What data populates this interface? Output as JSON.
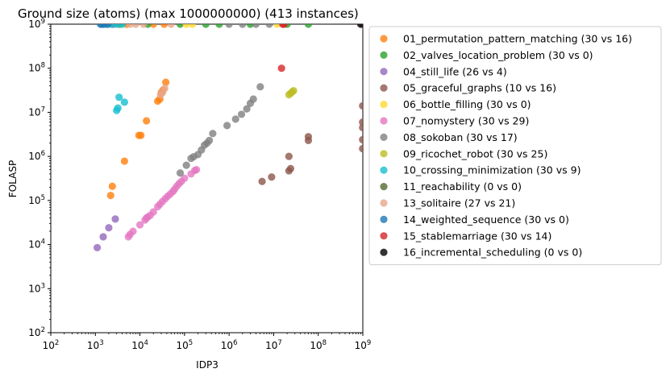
{
  "chart_data": {
    "type": "scatter",
    "title": "Ground size (atoms) (max 1000000000) (413 instances)",
    "xlabel": "IDP3",
    "ylabel": "FOLASP",
    "xscale": "log",
    "yscale": "log",
    "xlim": [
      100,
      1000000000
    ],
    "ylim": [
      100,
      1000000000
    ],
    "x_ticks": [
      {
        "base": "10",
        "exp": "2"
      },
      {
        "base": "10",
        "exp": "3"
      },
      {
        "base": "10",
        "exp": "4"
      },
      {
        "base": "10",
        "exp": "5"
      },
      {
        "base": "10",
        "exp": "6"
      },
      {
        "base": "10",
        "exp": "7"
      },
      {
        "base": "10",
        "exp": "8"
      },
      {
        "base": "10",
        "exp": "9"
      }
    ],
    "y_ticks": [
      {
        "base": "10",
        "exp": "2"
      },
      {
        "base": "10",
        "exp": "3"
      },
      {
        "base": "10",
        "exp": "4"
      },
      {
        "base": "10",
        "exp": "5"
      },
      {
        "base": "10",
        "exp": "6"
      },
      {
        "base": "10",
        "exp": "7"
      },
      {
        "base": "10",
        "exp": "8"
      },
      {
        "base": "10",
        "exp": "9"
      }
    ],
    "legend_position": "outside-right",
    "series": [
      {
        "name": "01_permutation_pattern_matching (30 vs 16)",
        "color": "#ff7f0e",
        "points": [
          [
            2200,
            130000
          ],
          [
            2400,
            210000
          ],
          [
            4500,
            780000
          ],
          [
            9500,
            3000000
          ],
          [
            10500,
            3000000
          ],
          [
            14000,
            6400000
          ],
          [
            25000,
            18000000
          ],
          [
            28000,
            20000000
          ],
          [
            30000,
            28000000
          ],
          [
            33000,
            32000000
          ],
          [
            38000,
            48000000
          ],
          [
            2500,
            1000000000
          ],
          [
            5000,
            1000000000
          ],
          [
            20000,
            1000000000
          ],
          [
            35000,
            1000000000
          ]
        ]
      },
      {
        "name": "02_valves_location_problem (30 vs 0)",
        "color": "#2ca02c",
        "points": [
          [
            3500,
            1000000000
          ],
          [
            15000,
            1000000000
          ],
          [
            80000,
            1000000000
          ],
          [
            300000,
            1000000000
          ],
          [
            600000,
            1000000000
          ],
          [
            3000000,
            1000000000
          ],
          [
            20000000,
            1000000000
          ],
          [
            60000000,
            1000000000
          ]
        ]
      },
      {
        "name": "04_still_life (26 vs 4)",
        "color": "#9467bd",
        "points": [
          [
            1100,
            8500
          ],
          [
            1500,
            15000
          ],
          [
            2000,
            24000
          ],
          [
            2800,
            38000
          ],
          [
            1600,
            1000000000
          ],
          [
            2500,
            1000000000
          ]
        ]
      },
      {
        "name": "05_graceful_graphs (10 vs 16)",
        "color": "#8c564b",
        "points": [
          [
            5500000,
            270000
          ],
          [
            9000000,
            340000
          ],
          [
            22000000,
            470000
          ],
          [
            24000000,
            530000
          ],
          [
            60000000,
            2300000
          ],
          [
            60000000,
            2800000
          ],
          [
            22000000,
            1000000
          ],
          [
            990000000,
            14000000
          ],
          [
            990000000,
            6000000
          ],
          [
            990000000,
            4500000
          ],
          [
            990000000,
            2400000
          ],
          [
            990000000,
            1500000
          ],
          [
            990000000,
            1000000000
          ]
        ]
      },
      {
        "name": "06_bottle_filling (30 vs 0)",
        "color": "#ffd92f",
        "points": [
          [
            110000,
            1000000000
          ],
          [
            150000,
            1000000000
          ],
          [
            12000000,
            1000000000
          ]
        ]
      },
      {
        "name": "07_nomystery (30 vs 29)",
        "color": "#e377c2",
        "points": [
          [
            5500,
            15000
          ],
          [
            6000,
            17000
          ],
          [
            7000,
            20000
          ],
          [
            10000,
            28000
          ],
          [
            13000,
            36000
          ],
          [
            14000,
            40000
          ],
          [
            15000,
            42000
          ],
          [
            17000,
            46000
          ],
          [
            20000,
            55000
          ],
          [
            25000,
            72000
          ],
          [
            28000,
            82000
          ],
          [
            32000,
            95000
          ],
          [
            37000,
            110000
          ],
          [
            42000,
            125000
          ],
          [
            48000,
            140000
          ],
          [
            55000,
            160000
          ],
          [
            60000,
            180000
          ],
          [
            67000,
            210000
          ],
          [
            75000,
            240000
          ],
          [
            85000,
            270000
          ],
          [
            100000,
            320000
          ],
          [
            140000,
            400000
          ],
          [
            170000,
            480000
          ],
          [
            185000,
            500000
          ]
        ]
      },
      {
        "name": "08_sokoban (30 vs 17)",
        "color": "#7f7f7f",
        "points": [
          [
            80000,
            420000
          ],
          [
            110000,
            630000
          ],
          [
            140000,
            900000
          ],
          [
            160000,
            980000
          ],
          [
            200000,
            1100000
          ],
          [
            240000,
            1400000
          ],
          [
            280000,
            1800000
          ],
          [
            320000,
            2000000
          ],
          [
            360000,
            2300000
          ],
          [
            430000,
            3300000
          ],
          [
            900000,
            5000000
          ],
          [
            1400000,
            7000000
          ],
          [
            1900000,
            9000000
          ],
          [
            2500000,
            12000000
          ],
          [
            3000000,
            16000000
          ],
          [
            3500000,
            20000000
          ],
          [
            5000000,
            38000000
          ],
          [
            1000000,
            1000000000
          ],
          [
            2000000,
            1000000000
          ],
          [
            4000000,
            1000000000
          ],
          [
            8000000,
            1000000000
          ]
        ]
      },
      {
        "name": "09_ricochet_robot (30 vs 25)",
        "color": "#bcbd22",
        "points": [
          [
            22000000,
            25000000
          ],
          [
            24000000,
            27000000
          ],
          [
            26000000,
            29000000
          ],
          [
            28000000,
            31000000
          ]
        ]
      },
      {
        "name": "10_crossing_minimization (30 vs 9)",
        "color": "#17becf",
        "points": [
          [
            3000,
            11000000
          ],
          [
            3200,
            12500000
          ],
          [
            3400,
            22000000
          ],
          [
            4500,
            17000000
          ],
          [
            1400,
            1000000000
          ],
          [
            1800,
            1000000000
          ],
          [
            2300,
            1000000000
          ],
          [
            3000,
            1000000000
          ],
          [
            4000,
            1000000000
          ]
        ]
      },
      {
        "name": "11_reachability (0 vs 0)",
        "color": "#556b2f",
        "points": []
      },
      {
        "name": "13_solitaire (27 vs 21)",
        "color": "#e9a68b",
        "points": [
          [
            29000,
            25000000
          ],
          [
            32000,
            28000000
          ],
          [
            36000,
            35000000
          ],
          [
            6000,
            1000000000
          ],
          [
            8000,
            1000000000
          ],
          [
            12000,
            1000000000
          ],
          [
            50000,
            1000000000
          ]
        ]
      },
      {
        "name": "14_weighted_sequence (30 vs 0)",
        "color": "#1f77b4",
        "points": [
          [
            1300,
            1000000000
          ],
          [
            1500,
            1000000000
          ],
          [
            1900,
            1000000000
          ]
        ]
      },
      {
        "name": "15_stablemarriage (30 vs 14)",
        "color": "#d62728",
        "points": [
          [
            15000000,
            100000000
          ],
          [
            16000000,
            1000000000
          ],
          [
            17000000,
            1000000000
          ]
        ]
      },
      {
        "name": "16_incremental_scheduling (0 vs 0)",
        "color": "#000000",
        "points": [
          [
            900000000,
            1000000000
          ]
        ]
      }
    ]
  }
}
